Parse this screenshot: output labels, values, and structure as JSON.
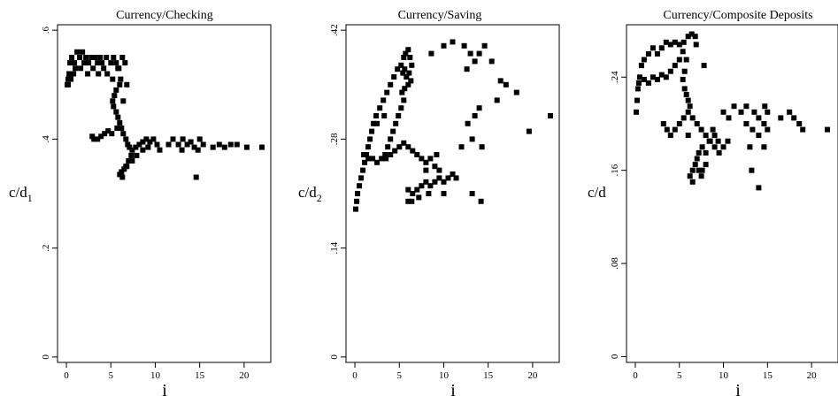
{
  "chart_data": [
    {
      "type": "scatter",
      "title": "Currency/Checking",
      "xlabel": "i",
      "ylabel": "c/d",
      "ylabel_sub": "1",
      "xlim": [
        -1,
        23
      ],
      "ylim": [
        -0.01,
        0.61
      ],
      "xticks": [
        0,
        5,
        10,
        15,
        20
      ],
      "xtick_labels": [
        "0",
        "5",
        "10",
        "15",
        "20"
      ],
      "yticks": [
        0,
        0.2,
        0.4,
        0.6
      ],
      "ytick_labels": [
        "0",
        ".2",
        ".4",
        ".6"
      ],
      "grid": false,
      "marker": "square",
      "color": "#000000",
      "points": [
        [
          0.2,
          0.5
        ],
        [
          0.3,
          0.52
        ],
        [
          0.4,
          0.54
        ],
        [
          0.6,
          0.55
        ],
        [
          0.9,
          0.54
        ],
        [
          1.2,
          0.56
        ],
        [
          1.5,
          0.55
        ],
        [
          1.8,
          0.56
        ],
        [
          2.0,
          0.54
        ],
        [
          2.2,
          0.55
        ],
        [
          2.5,
          0.54
        ],
        [
          2.8,
          0.55
        ],
        [
          3.0,
          0.53
        ],
        [
          3.2,
          0.55
        ],
        [
          3.5,
          0.54
        ],
        [
          3.8,
          0.55
        ],
        [
          4.0,
          0.54
        ],
        [
          4.2,
          0.53
        ],
        [
          4.5,
          0.55
        ],
        [
          5.0,
          0.54
        ],
        [
          5.3,
          0.55
        ],
        [
          5.6,
          0.54
        ],
        [
          5.9,
          0.53
        ],
        [
          6.3,
          0.55
        ],
        [
          6.6,
          0.54
        ],
        [
          1.0,
          0.53
        ],
        [
          1.6,
          0.53
        ],
        [
          2.4,
          0.52
        ],
        [
          0.5,
          0.51
        ],
        [
          0.2,
          0.51
        ],
        [
          0.1,
          0.5
        ],
        [
          0.8,
          0.52
        ],
        [
          3.6,
          0.52
        ],
        [
          4.6,
          0.52
        ],
        [
          5.2,
          0.51
        ],
        [
          5.8,
          0.53
        ],
        [
          6.1,
          0.51
        ],
        [
          6.0,
          0.5
        ],
        [
          5.6,
          0.49
        ],
        [
          5.4,
          0.48
        ],
        [
          5.2,
          0.47
        ],
        [
          5.3,
          0.46
        ],
        [
          5.6,
          0.45
        ],
        [
          5.8,
          0.44
        ],
        [
          6.0,
          0.43
        ],
        [
          6.2,
          0.42
        ],
        [
          5.7,
          0.42
        ],
        [
          5.1,
          0.41
        ],
        [
          4.7,
          0.415
        ],
        [
          4.3,
          0.41
        ],
        [
          3.9,
          0.405
        ],
        [
          3.5,
          0.4
        ],
        [
          3.1,
          0.4
        ],
        [
          2.9,
          0.405
        ],
        [
          6.4,
          0.41
        ],
        [
          6.7,
          0.4
        ],
        [
          6.9,
          0.39
        ],
        [
          7.1,
          0.385
        ],
        [
          7.4,
          0.38
        ],
        [
          7.8,
          0.385
        ],
        [
          8.2,
          0.39
        ],
        [
          8.6,
          0.395
        ],
        [
          9.0,
          0.4
        ],
        [
          9.4,
          0.395
        ],
        [
          9.8,
          0.4
        ],
        [
          10.2,
          0.39
        ],
        [
          10.5,
          0.38
        ],
        [
          7.3,
          0.37
        ],
        [
          7.0,
          0.36
        ],
        [
          6.8,
          0.35
        ],
        [
          6.5,
          0.345
        ],
        [
          6.2,
          0.34
        ],
        [
          6.0,
          0.335
        ],
        [
          6.3,
          0.33
        ],
        [
          6.7,
          0.35
        ],
        [
          7.4,
          0.36
        ],
        [
          7.9,
          0.37
        ],
        [
          8.6,
          0.38
        ],
        [
          9.2,
          0.385
        ],
        [
          12.0,
          0.4
        ],
        [
          12.6,
          0.39
        ],
        [
          13.1,
          0.4
        ],
        [
          13.6,
          0.39
        ],
        [
          14.0,
          0.395
        ],
        [
          14.4,
          0.385
        ],
        [
          14.8,
          0.38
        ],
        [
          15.0,
          0.4
        ],
        [
          15.4,
          0.39
        ],
        [
          16.5,
          0.385
        ],
        [
          17.2,
          0.39
        ],
        [
          17.8,
          0.385
        ],
        [
          18.5,
          0.39
        ],
        [
          19.2,
          0.39
        ],
        [
          20.3,
          0.385
        ],
        [
          22.0,
          0.385
        ],
        [
          14.6,
          0.33
        ],
        [
          13.0,
          0.38
        ],
        [
          11.5,
          0.39
        ],
        [
          6.4,
          0.47
        ],
        [
          6.8,
          0.5
        ]
      ]
    },
    {
      "type": "scatter",
      "title": "Currency/Saving",
      "xlabel": "i",
      "ylabel": "c/d",
      "ylabel_sub": "2",
      "xlim": [
        -1,
        23
      ],
      "ylim": [
        -0.007,
        0.427
      ],
      "xticks": [
        0,
        5,
        10,
        15,
        20
      ],
      "xtick_labels": [
        "0",
        "5",
        "10",
        "15",
        "20"
      ],
      "yticks": [
        0,
        0.14,
        0.28,
        0.42
      ],
      "ytick_labels": [
        "0",
        ".14",
        ".28",
        ".42"
      ],
      "grid": false,
      "marker": "square",
      "color": "#000000",
      "points": [
        [
          0.1,
          0.19
        ],
        [
          0.2,
          0.2
        ],
        [
          0.3,
          0.21
        ],
        [
          0.5,
          0.22
        ],
        [
          0.7,
          0.23
        ],
        [
          0.9,
          0.24
        ],
        [
          1.1,
          0.25
        ],
        [
          1.3,
          0.26
        ],
        [
          1.5,
          0.27
        ],
        [
          1.7,
          0.28
        ],
        [
          1.9,
          0.29
        ],
        [
          2.1,
          0.3
        ],
        [
          2.4,
          0.31
        ],
        [
          2.8,
          0.32
        ],
        [
          3.2,
          0.33
        ],
        [
          3.6,
          0.34
        ],
        [
          4.0,
          0.35
        ],
        [
          4.4,
          0.36
        ],
        [
          4.8,
          0.37
        ],
        [
          5.2,
          0.375
        ],
        [
          5.5,
          0.385
        ],
        [
          5.7,
          0.39
        ],
        [
          6.0,
          0.395
        ],
        [
          6.2,
          0.385
        ],
        [
          6.4,
          0.375
        ],
        [
          6.1,
          0.365
        ],
        [
          5.8,
          0.36
        ],
        [
          5.6,
          0.37
        ],
        [
          5.4,
          0.365
        ],
        [
          6.3,
          0.355
        ],
        [
          6.0,
          0.35
        ],
        [
          5.6,
          0.345
        ],
        [
          5.3,
          0.34
        ],
        [
          5.5,
          0.33
        ],
        [
          5.2,
          0.32
        ],
        [
          4.9,
          0.31
        ],
        [
          4.6,
          0.3
        ],
        [
          4.3,
          0.29
        ],
        [
          4.0,
          0.28
        ],
        [
          3.7,
          0.27
        ],
        [
          3.4,
          0.26
        ],
        [
          1.0,
          0.26
        ],
        [
          1.5,
          0.255
        ],
        [
          2.0,
          0.255
        ],
        [
          2.5,
          0.25
        ],
        [
          3.0,
          0.255
        ],
        [
          3.5,
          0.255
        ],
        [
          4.0,
          0.26
        ],
        [
          4.5,
          0.265
        ],
        [
          5.0,
          0.27
        ],
        [
          5.5,
          0.275
        ],
        [
          6.0,
          0.27
        ],
        [
          6.5,
          0.265
        ],
        [
          7.0,
          0.26
        ],
        [
          7.5,
          0.255
        ],
        [
          8.0,
          0.25
        ],
        [
          8.5,
          0.255
        ],
        [
          9.0,
          0.245
        ],
        [
          9.5,
          0.24
        ],
        [
          6.0,
          0.215
        ],
        [
          6.5,
          0.21
        ],
        [
          7.0,
          0.215
        ],
        [
          7.5,
          0.22
        ],
        [
          8.0,
          0.225
        ],
        [
          8.5,
          0.22
        ],
        [
          9.0,
          0.225
        ],
        [
          9.5,
          0.23
        ],
        [
          10.0,
          0.225
        ],
        [
          10.5,
          0.23
        ],
        [
          11.0,
          0.235
        ],
        [
          11.4,
          0.23
        ],
        [
          6.4,
          0.2
        ],
        [
          7.2,
          0.205
        ],
        [
          8.3,
          0.21
        ],
        [
          6.0,
          0.2
        ],
        [
          8.0,
          0.24
        ],
        [
          9.2,
          0.26
        ],
        [
          10.0,
          0.21
        ],
        [
          11.0,
          0.405
        ],
        [
          12.3,
          0.4
        ],
        [
          13.0,
          0.39
        ],
        [
          14.0,
          0.39
        ],
        [
          14.6,
          0.4
        ],
        [
          12.6,
          0.37
        ],
        [
          13.5,
          0.38
        ],
        [
          15.4,
          0.38
        ],
        [
          16.4,
          0.355
        ],
        [
          17.0,
          0.35
        ],
        [
          18.2,
          0.34
        ],
        [
          16.0,
          0.33
        ],
        [
          14.0,
          0.32
        ],
        [
          13.5,
          0.31
        ],
        [
          12.7,
          0.3
        ],
        [
          13.2,
          0.28
        ],
        [
          14.3,
          0.27
        ],
        [
          12.0,
          0.27
        ],
        [
          19.6,
          0.29
        ],
        [
          22.0,
          0.31
        ],
        [
          13.2,
          0.21
        ],
        [
          14.2,
          0.2
        ],
        [
          10.0,
          0.4
        ],
        [
          8.6,
          0.39
        ],
        [
          3.3,
          0.31
        ],
        [
          2.5,
          0.3
        ]
      ]
    },
    {
      "type": "scatter",
      "title": "Currency/Composite Deposits",
      "xlabel": "i",
      "ylabel": "c/d",
      "xlim": [
        -1,
        23
      ],
      "ylim": [
        -0.005,
        0.285
      ],
      "xticks": [
        0,
        5,
        10,
        15,
        20
      ],
      "xtick_labels": [
        "0",
        "5",
        "10",
        "15",
        "20"
      ],
      "yticks": [
        0,
        0.08,
        0.16,
        0.24
      ],
      "ytick_labels": [
        "0",
        ".08",
        ".16",
        ".24"
      ],
      "grid": false,
      "marker": "square",
      "color": "#000000",
      "points": [
        [
          0.1,
          0.21
        ],
        [
          0.2,
          0.22
        ],
        [
          0.3,
          0.23
        ],
        [
          0.5,
          0.24
        ],
        [
          0.7,
          0.25
        ],
        [
          1.0,
          0.255
        ],
        [
          1.5,
          0.26
        ],
        [
          2.0,
          0.265
        ],
        [
          2.5,
          0.26
        ],
        [
          3.0,
          0.265
        ],
        [
          3.5,
          0.27
        ],
        [
          4.0,
          0.268
        ],
        [
          4.5,
          0.27
        ],
        [
          5.0,
          0.268
        ],
        [
          5.5,
          0.27
        ],
        [
          6.0,
          0.275
        ],
        [
          6.4,
          0.277
        ],
        [
          6.8,
          0.275
        ],
        [
          6.9,
          0.268
        ],
        [
          0.4,
          0.235
        ],
        [
          1.0,
          0.238
        ],
        [
          1.5,
          0.235
        ],
        [
          2.0,
          0.24
        ],
        [
          2.5,
          0.238
        ],
        [
          3.0,
          0.242
        ],
        [
          3.5,
          0.24
        ],
        [
          4.0,
          0.245
        ],
        [
          4.5,
          0.25
        ],
        [
          5.0,
          0.255
        ],
        [
          5.4,
          0.262
        ],
        [
          5.8,
          0.255
        ],
        [
          5.6,
          0.245
        ],
        [
          5.4,
          0.238
        ],
        [
          5.6,
          0.23
        ],
        [
          5.8,
          0.225
        ],
        [
          6.0,
          0.22
        ],
        [
          6.2,
          0.215
        ],
        [
          3.2,
          0.2
        ],
        [
          3.6,
          0.195
        ],
        [
          4.0,
          0.19
        ],
        [
          4.5,
          0.195
        ],
        [
          5.0,
          0.2
        ],
        [
          5.5,
          0.205
        ],
        [
          6.0,
          0.21
        ],
        [
          6.5,
          0.205
        ],
        [
          7.0,
          0.2
        ],
        [
          7.5,
          0.195
        ],
        [
          8.0,
          0.19
        ],
        [
          8.5,
          0.185
        ],
        [
          9.0,
          0.18
        ],
        [
          9.5,
          0.175
        ],
        [
          10.0,
          0.18
        ],
        [
          10.5,
          0.185
        ],
        [
          7.0,
          0.17
        ],
        [
          7.2,
          0.175
        ],
        [
          7.6,
          0.18
        ],
        [
          8.0,
          0.175
        ],
        [
          8.4,
          0.185
        ],
        [
          9.0,
          0.19
        ],
        [
          8.8,
          0.195
        ],
        [
          9.4,
          0.185
        ],
        [
          6.2,
          0.155
        ],
        [
          6.5,
          0.16
        ],
        [
          6.8,
          0.165
        ],
        [
          7.2,
          0.16
        ],
        [
          7.6,
          0.16
        ],
        [
          8.0,
          0.165
        ],
        [
          6.5,
          0.15
        ],
        [
          7.5,
          0.155
        ],
        [
          6.0,
          0.19
        ],
        [
          10.0,
          0.21
        ],
        [
          10.6,
          0.205
        ],
        [
          11.2,
          0.215
        ],
        [
          12.0,
          0.21
        ],
        [
          12.6,
          0.215
        ],
        [
          13.5,
          0.21
        ],
        [
          14.0,
          0.205
        ],
        [
          14.7,
          0.215
        ],
        [
          15.0,
          0.21
        ],
        [
          12.6,
          0.2
        ],
        [
          13.3,
          0.195
        ],
        [
          14.0,
          0.19
        ],
        [
          14.6,
          0.2
        ],
        [
          15.0,
          0.195
        ],
        [
          13.0,
          0.18
        ],
        [
          14.6,
          0.18
        ],
        [
          16.5,
          0.205
        ],
        [
          17.5,
          0.21
        ],
        [
          18.0,
          0.205
        ],
        [
          18.6,
          0.2
        ],
        [
          19.0,
          0.195
        ],
        [
          13.2,
          0.16
        ],
        [
          14.0,
          0.145
        ],
        [
          21.8,
          0.195
        ],
        [
          7.8,
          0.25
        ]
      ]
    }
  ]
}
